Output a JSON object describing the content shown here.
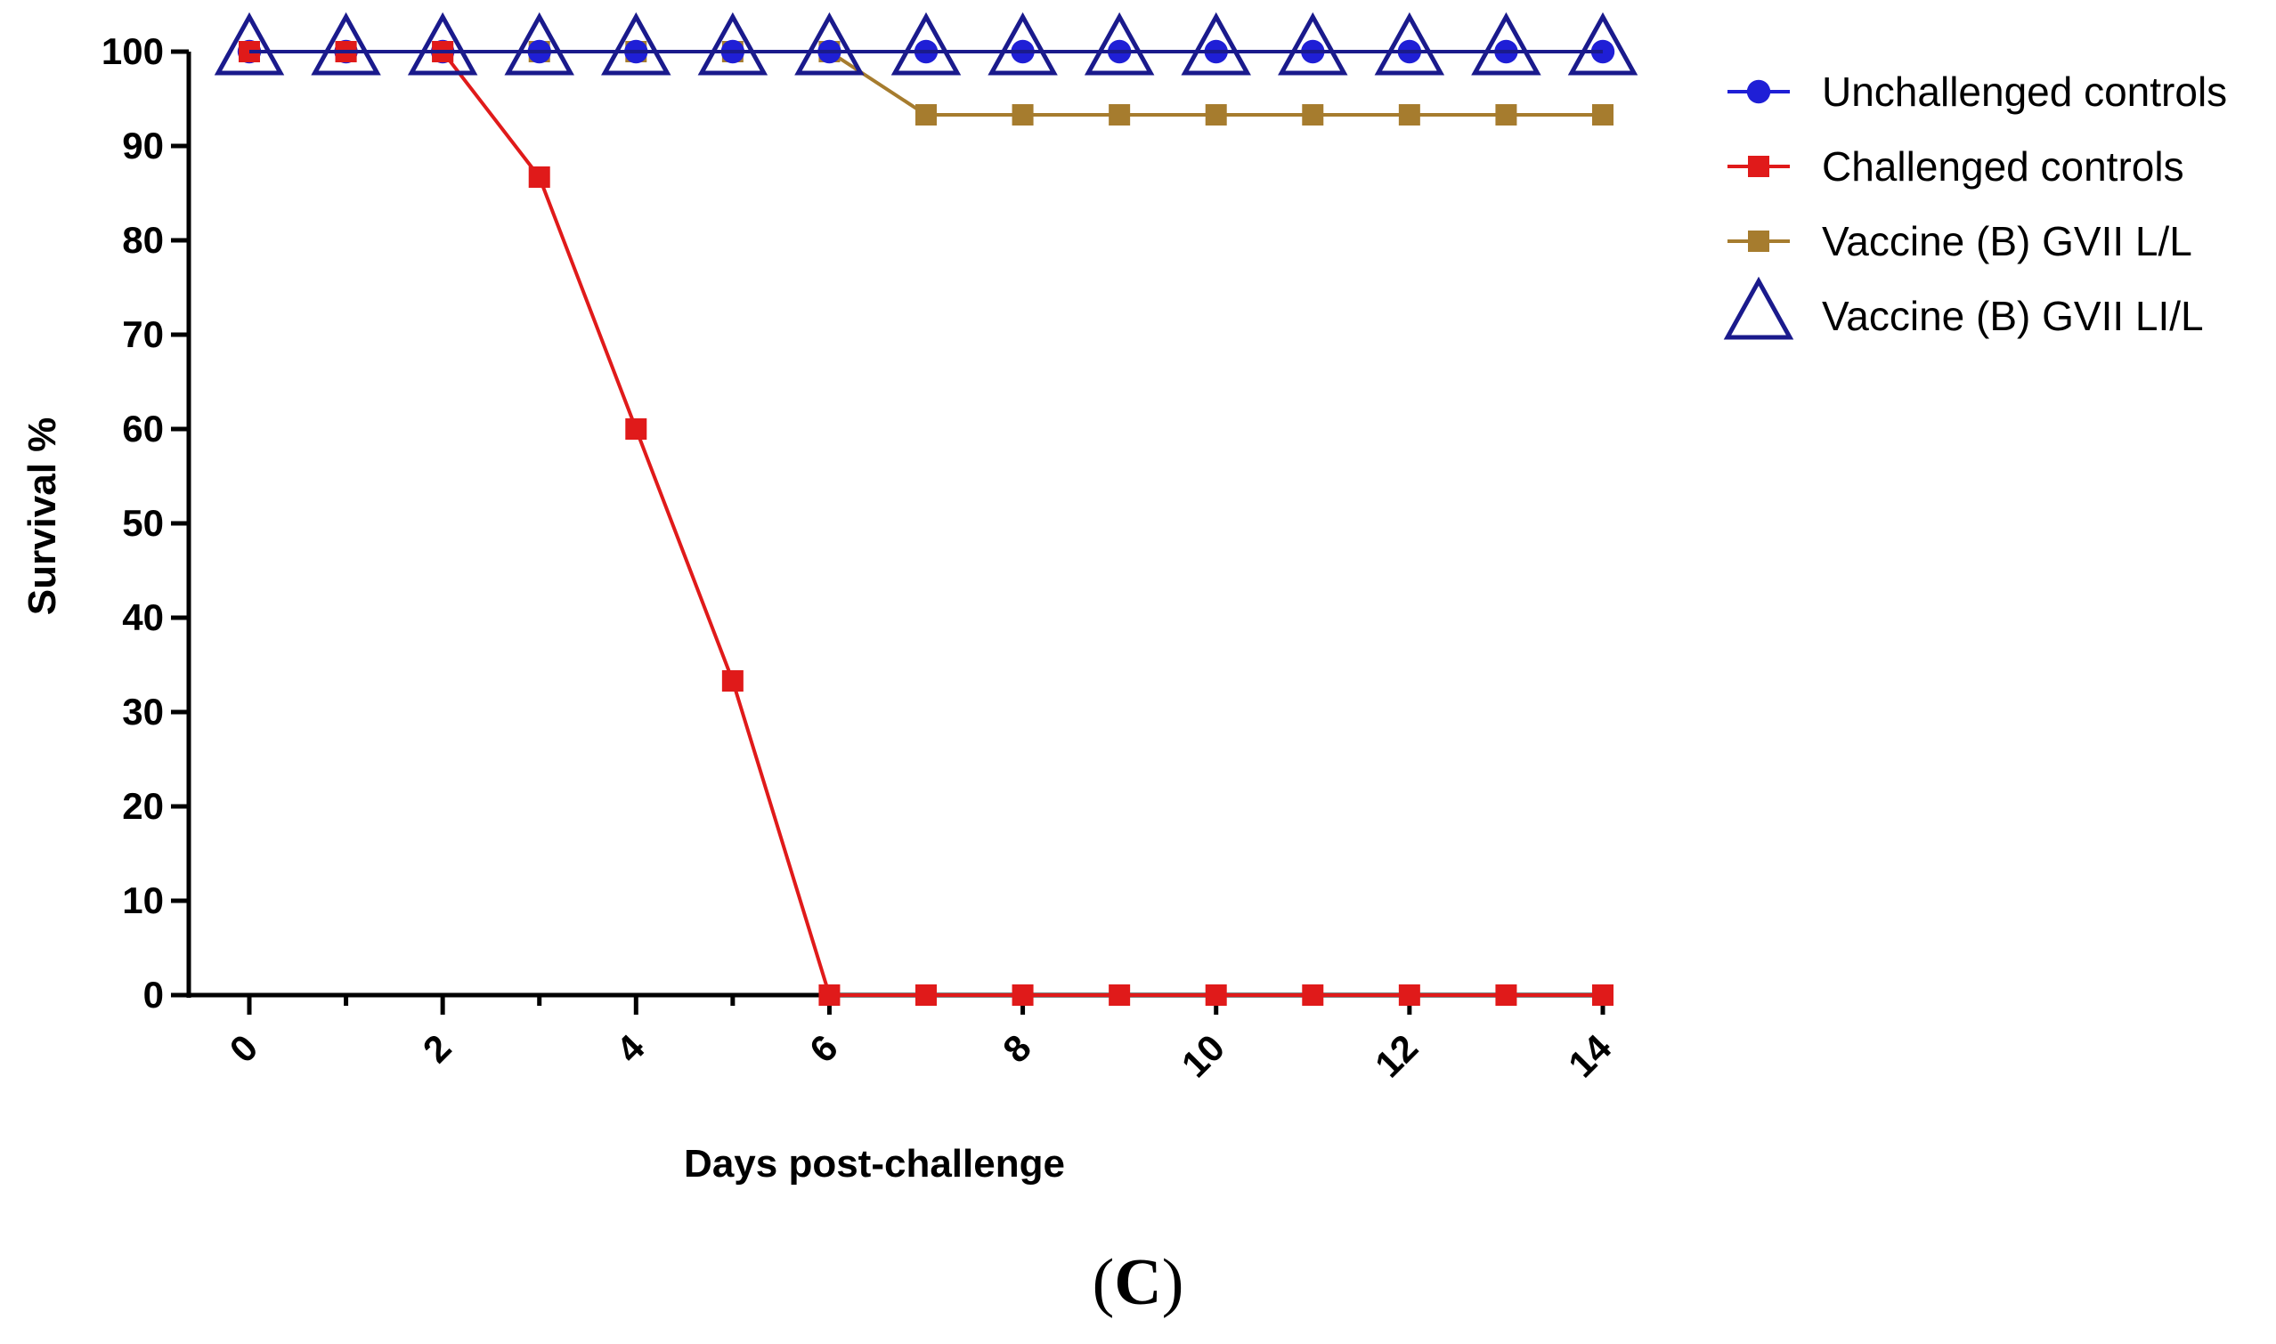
{
  "chart_data": {
    "type": "line",
    "title": "",
    "xlabel": "Days post-challenge",
    "ylabel": "Survival %",
    "xlim": [
      0,
      14
    ],
    "ylim": [
      0,
      100
    ],
    "xticks": [
      0,
      2,
      4,
      6,
      8,
      10,
      12,
      14
    ],
    "yticks": [
      0,
      10,
      20,
      30,
      40,
      50,
      60,
      70,
      80,
      90,
      100
    ],
    "grid": false,
    "legend_position": "top-right, outside plot",
    "x": [
      0,
      1,
      2,
      3,
      4,
      5,
      6,
      7,
      8,
      9,
      10,
      11,
      12,
      13,
      14
    ],
    "series": [
      {
        "name": "Unchallenged controls",
        "marker": "circle",
        "color": "#1f1fd6",
        "values": [
          100,
          100,
          100,
          100,
          100,
          100,
          100,
          100,
          100,
          100,
          100,
          100,
          100,
          100,
          100
        ]
      },
      {
        "name": "Challenged controls",
        "marker": "square",
        "color": "#e01a1a",
        "values": [
          100,
          100,
          100,
          86.7,
          60,
          33.3,
          0,
          0,
          0,
          0,
          0,
          0,
          0,
          0,
          0
        ]
      },
      {
        "name": "Vaccine (B) GVII L/L",
        "marker": "square",
        "color": "#a67c2e",
        "values": [
          100,
          100,
          100,
          100,
          100,
          100,
          100,
          93.3,
          93.3,
          93.3,
          93.3,
          93.3,
          93.3,
          93.3,
          93.3
        ]
      },
      {
        "name": "Vaccine (B) GVII LI/L",
        "marker": "triangle-open",
        "color": "#1a1a8c",
        "values": [
          100,
          100,
          100,
          100,
          100,
          100,
          100,
          100,
          100,
          100,
          100,
          100,
          100,
          100,
          100
        ]
      }
    ],
    "panel_label_open": "(",
    "panel_label_letter": "C",
    "panel_label_close": ")"
  }
}
